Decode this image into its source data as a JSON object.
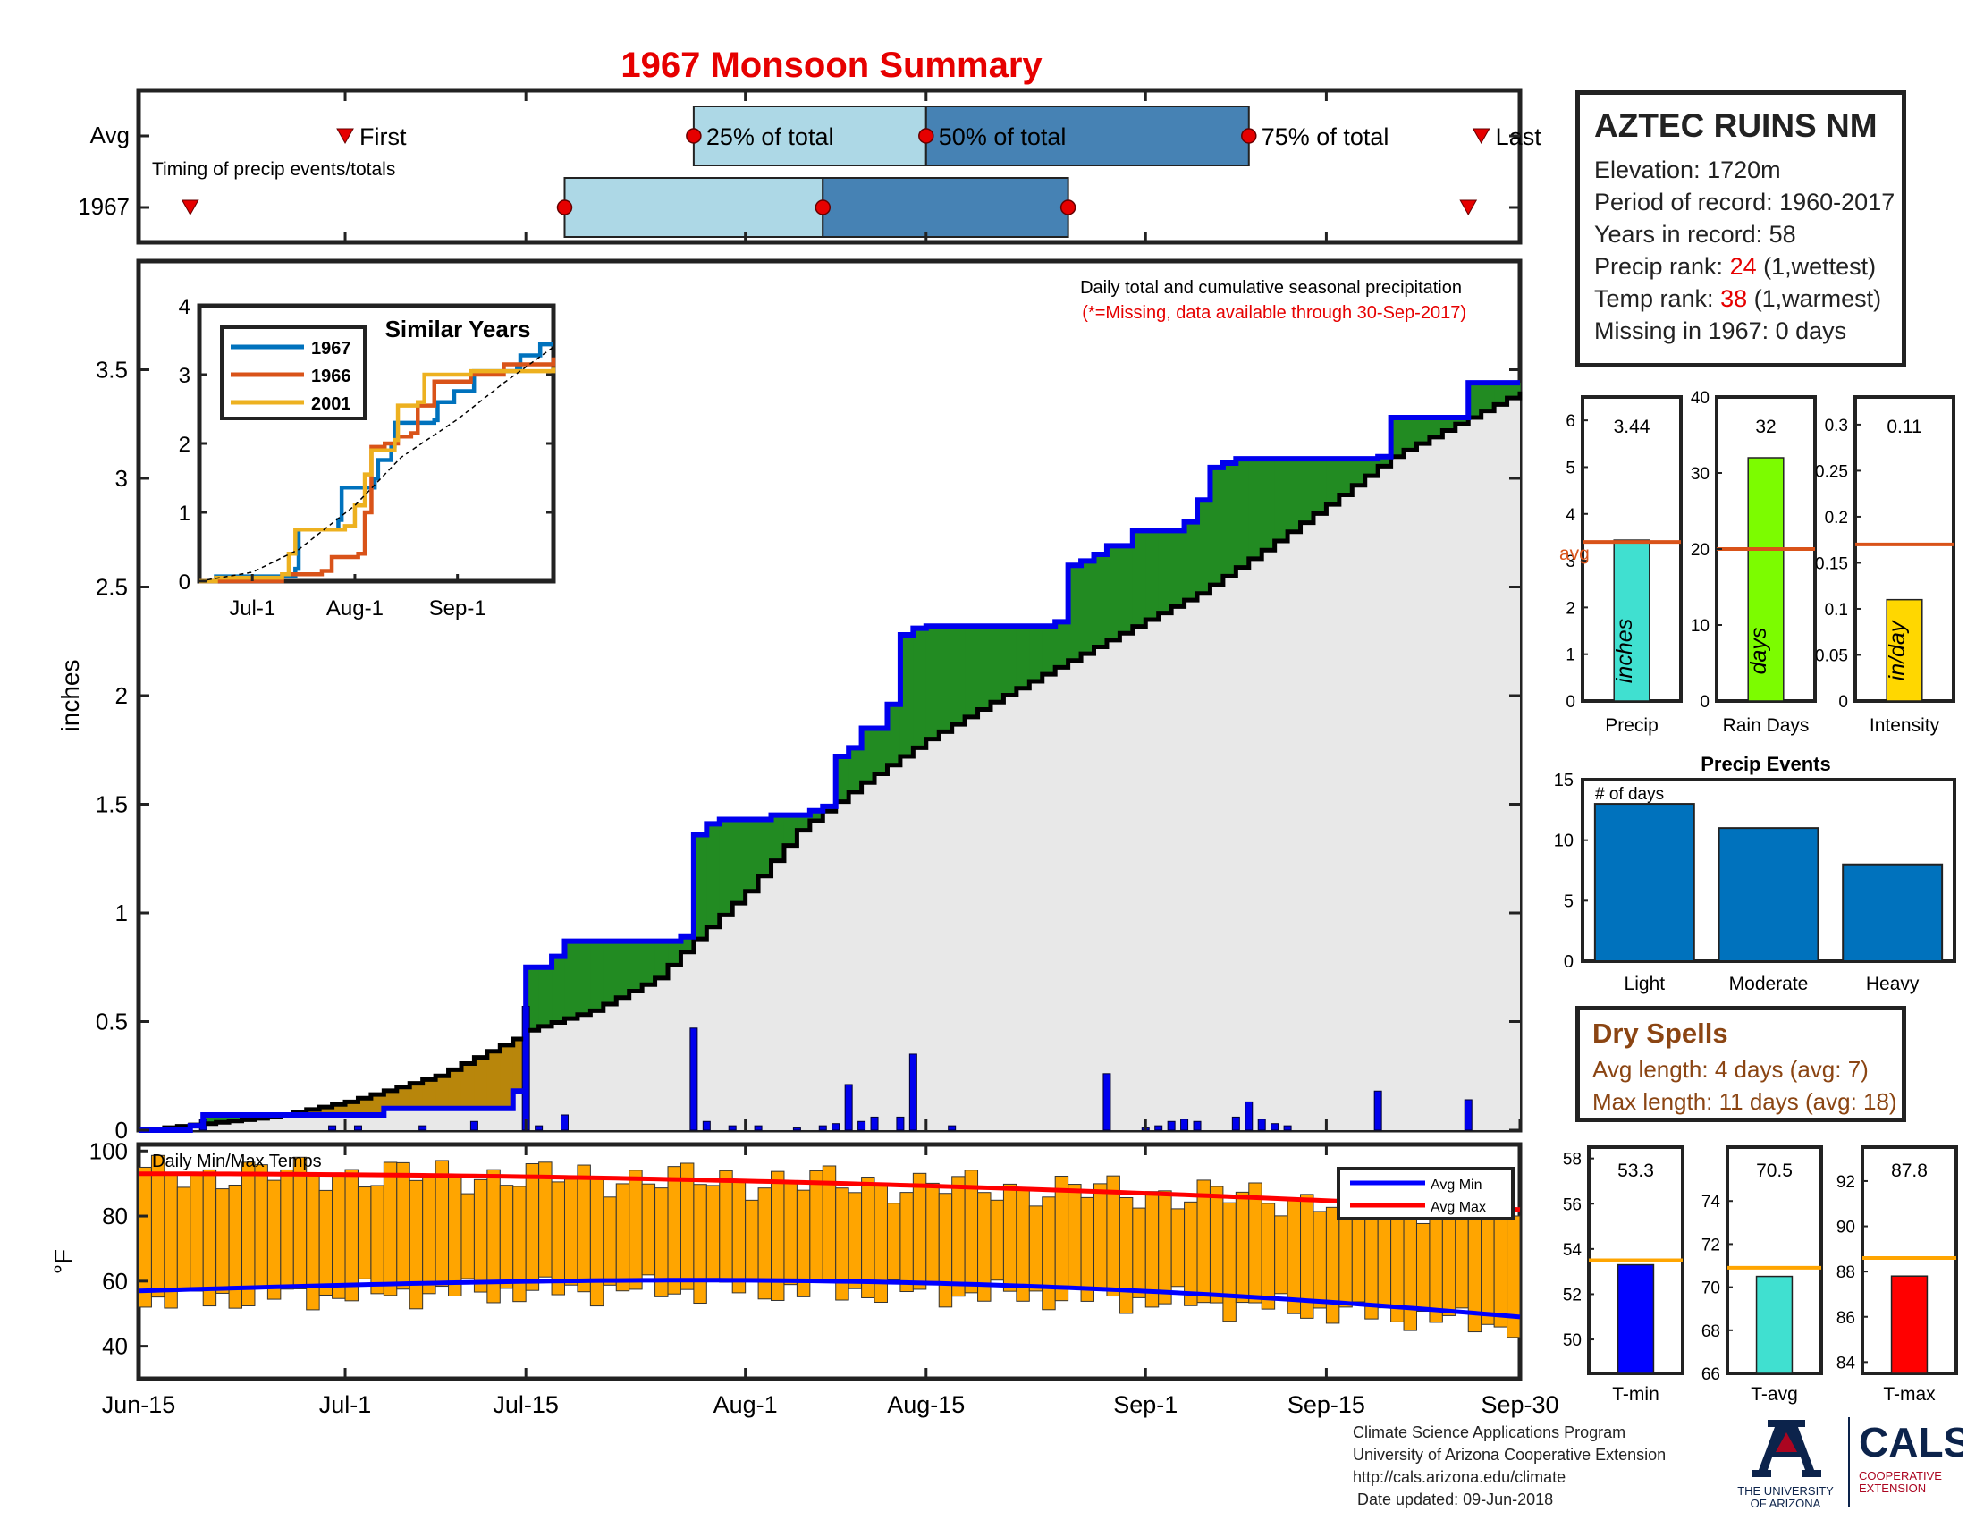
{
  "title": "1967 Monsoon Summary",
  "timing": {
    "row_labels": [
      "Avg",
      "1967"
    ],
    "subtitle": "Timing of precip events/totals",
    "first_label": "First",
    "last_label": "Last",
    "pct_labels": [
      "25% of total",
      "50% of total",
      "75% of total"
    ],
    "axis_start": "2019-06-15",
    "avg": {
      "first": "2019-07-01",
      "p25": "2019-07-28",
      "p50": "2019-08-15",
      "p75": "2019-09-09",
      "last": "2019-09-27"
    },
    "year": {
      "first": "2019-06-19",
      "p25": "2019-07-18",
      "p50": "2019-08-07",
      "p75": "2019-08-26",
      "last": "2019-09-26"
    }
  },
  "station": {
    "name": "AZTEC RUINS NM",
    "elevation": "Elevation: 1720m",
    "period": "Period of record: 1960-2017",
    "years": "Years in record: 58",
    "precip_rank_label": "Precip rank: ",
    "precip_rank_value": "24",
    "precip_rank_note": " (1,wettest)",
    "temp_rank_label": "Temp rank: ",
    "temp_rank_value": "38",
    "temp_rank_note": " (1,warmest)",
    "missing": "Missing in 1967: 0 days"
  },
  "main_text": {
    "note1": "Daily total and cumulative seasonal precipitation",
    "note2": "(*=Missing, data available through 30-Sep-2017)",
    "ylabel": "inches",
    "temp_label": "Daily Min/Max Temps",
    "temp_ylabel": "°F"
  },
  "x_ticks": [
    {
      "label": "Jun-15",
      "date": "2019-06-15"
    },
    {
      "label": "Jul-1",
      "date": "2019-07-01"
    },
    {
      "label": "Jul-15",
      "date": "2019-07-15"
    },
    {
      "label": "Aug-1",
      "date": "2019-08-01"
    },
    {
      "label": "Aug-15",
      "date": "2019-08-15"
    },
    {
      "label": "Sep-1",
      "date": "2019-09-01"
    },
    {
      "label": "Sep-15",
      "date": "2019-09-15"
    },
    {
      "label": "Sep-30",
      "date": "2019-09-30"
    }
  ],
  "inset": {
    "title": "Similar Years",
    "legend": [
      "1967",
      "1966",
      "2001"
    ],
    "x_ticks": [
      "Jul-1",
      "Aug-1",
      "Sep-1"
    ],
    "y_ticks": [
      "0",
      "1",
      "2",
      "3",
      "4"
    ]
  },
  "small_bars": [
    {
      "value_label": "3.44",
      "xlabel": "Precip",
      "unit": "inches",
      "avg_label": "avg",
      "y_ticks": [
        "0",
        "1",
        "2",
        "3",
        "4",
        "5",
        "6"
      ]
    },
    {
      "value_label": "32",
      "xlabel": "Rain Days",
      "unit": "days",
      "y_ticks": [
        "0",
        "10",
        "20",
        "30",
        "40"
      ]
    },
    {
      "value_label": "0.11",
      "xlabel": "Intensity",
      "unit": "in/day",
      "y_ticks": [
        "0",
        "0.05",
        "0.1",
        "0.15",
        "0.2",
        "0.25",
        "0.3"
      ]
    }
  ],
  "events": {
    "title": "Precip Events",
    "note": "# of days",
    "y_ticks": [
      "0",
      "5",
      "10",
      "15"
    ]
  },
  "temp_bars": [
    {
      "value_label": "53.3",
      "xlabel": "T-min",
      "y_ticks": [
        "50",
        "52",
        "54",
        "56",
        "58"
      ]
    },
    {
      "value_label": "70.5",
      "xlabel": "T-avg",
      "y_ticks": [
        "66",
        "68",
        "70",
        "72",
        "74"
      ]
    },
    {
      "value_label": "87.8",
      "xlabel": "T-max",
      "y_ticks": [
        "84",
        "86",
        "88",
        "90",
        "92"
      ]
    }
  ],
  "dry_spells": {
    "title": "Dry Spells",
    "avg": "Avg length: 4 days (avg: 7)",
    "max": "Max length: 11 days (avg: 18)"
  },
  "credits": [
    "Climate Science Applications Program",
    "University of Arizona Cooperative Extension",
    "http://cals.arizona.edu/climate",
    " Date updated: 09-Jun-2018"
  ],
  "logos": {
    "ua_line1": "THE UNIVERSITY",
    "ua_line2": "OF ARIZONA",
    "cals_main": "CALS",
    "cals_line1": "COOPERATIVE",
    "cals_line2": "EXTENSION"
  },
  "colors": {
    "title": "#e60000",
    "year_line": "#0000ee",
    "avg_line": "#000000",
    "above_fill": "#228b22",
    "below_fill": "#b8860b",
    "base_fill": "#e8e8e8",
    "daily_bar": "#0000ee",
    "temp_bar": "#ffa500",
    "avg_min": "#0000ff",
    "avg_max": "#ff0000",
    "box_light": "#add8e6",
    "box_dark": "#4682b4"
  },
  "chart_data": [
    {
      "type": "line",
      "name": "cumulative",
      "x_start": "2019-06-15",
      "x_end": "2019-09-30",
      "ylim": [
        0,
        4
      ],
      "y_ticks": [
        0,
        0.5,
        1,
        1.5,
        2,
        2.5,
        3,
        3.5
      ],
      "series": [
        {
          "name": "1967",
          "points": [
            [
              "2019-06-15",
              0
            ],
            [
              "2019-06-19",
              0.02
            ],
            [
              "2019-06-20",
              0.07
            ],
            [
              "2019-07-04",
              0.1
            ],
            [
              "2019-07-14",
              0.18
            ],
            [
              "2019-07-15",
              0.75
            ],
            [
              "2019-07-17",
              0.8
            ],
            [
              "2019-07-18",
              0.87
            ],
            [
              "2019-07-27",
              0.89
            ],
            [
              "2019-07-28",
              1.36
            ],
            [
              "2019-07-29",
              1.41
            ],
            [
              "2019-07-30",
              1.43
            ],
            [
              "2019-08-03",
              1.45
            ],
            [
              "2019-08-06",
              1.47
            ],
            [
              "2019-08-07",
              1.49
            ],
            [
              "2019-08-08",
              1.72
            ],
            [
              "2019-08-09",
              1.76
            ],
            [
              "2019-08-10",
              1.85
            ],
            [
              "2019-08-12",
              1.96
            ],
            [
              "2019-08-13",
              2.28
            ],
            [
              "2019-08-14",
              2.31
            ],
            [
              "2019-08-15",
              2.32
            ],
            [
              "2019-08-25",
              2.34
            ],
            [
              "2019-08-26",
              2.6
            ],
            [
              "2019-08-27",
              2.62
            ],
            [
              "2019-08-28",
              2.65
            ],
            [
              "2019-08-29",
              2.69
            ],
            [
              "2019-08-31",
              2.76
            ],
            [
              "2019-09-04",
              2.8
            ],
            [
              "2019-09-05",
              2.9
            ],
            [
              "2019-09-06",
              3.05
            ],
            [
              "2019-09-07",
              3.07
            ],
            [
              "2019-09-08",
              3.09
            ],
            [
              "2019-09-19",
              3.1
            ],
            [
              "2019-09-20",
              3.28
            ],
            [
              "2019-09-26",
              3.44
            ],
            [
              "2019-09-30",
              3.44
            ]
          ]
        },
        {
          "name": "Avg",
          "points": [
            [
              "2019-06-15",
              0
            ],
            [
              "2019-06-25",
              0.06
            ],
            [
              "2019-07-01",
              0.13
            ],
            [
              "2019-07-08",
              0.25
            ],
            [
              "2019-07-14",
              0.42
            ],
            [
              "2019-07-15",
              0.46
            ],
            [
              "2019-07-20",
              0.55
            ],
            [
              "2019-07-25",
              0.7
            ],
            [
              "2019-07-28",
              0.88
            ],
            [
              "2019-08-01",
              1.1
            ],
            [
              "2019-08-05",
              1.38
            ],
            [
              "2019-08-10",
              1.6
            ],
            [
              "2019-08-15",
              1.8
            ],
            [
              "2019-08-20",
              1.97
            ],
            [
              "2019-08-25",
              2.13
            ],
            [
              "2019-09-01",
              2.35
            ],
            [
              "2019-09-05",
              2.47
            ],
            [
              "2019-09-10",
              2.67
            ],
            [
              "2019-09-15",
              2.88
            ],
            [
              "2019-09-20",
              3.1
            ],
            [
              "2019-09-25",
              3.25
            ],
            [
              "2019-09-30",
              3.4
            ]
          ]
        }
      ],
      "daily_bars": [
        [
          "2019-06-20",
          0.05
        ],
        [
          "2019-06-30",
          0.02
        ],
        [
          "2019-07-02",
          0.02
        ],
        [
          "2019-07-07",
          0.02
        ],
        [
          "2019-07-11",
          0.04
        ],
        [
          "2019-07-15",
          0.57
        ],
        [
          "2019-07-16",
          0.02
        ],
        [
          "2019-07-18",
          0.07
        ],
        [
          "2019-07-28",
          0.47
        ],
        [
          "2019-07-29",
          0.04
        ],
        [
          "2019-07-31",
          0.02
        ],
        [
          "2019-08-02",
          0.02
        ],
        [
          "2019-08-05",
          0.01
        ],
        [
          "2019-08-07",
          0.02
        ],
        [
          "2019-08-08",
          0.03
        ],
        [
          "2019-08-09",
          0.21
        ],
        [
          "2019-08-10",
          0.04
        ],
        [
          "2019-08-11",
          0.06
        ],
        [
          "2019-08-13",
          0.06
        ],
        [
          "2019-08-14",
          0.35
        ],
        [
          "2019-08-17",
          0.02
        ],
        [
          "2019-08-29",
          0.26
        ],
        [
          "2019-09-01",
          0.01
        ],
        [
          "2019-09-02",
          0.02
        ],
        [
          "2019-09-03",
          0.04
        ],
        [
          "2019-09-04",
          0.05
        ],
        [
          "2019-09-05",
          0.04
        ],
        [
          "2019-09-08",
          0.06
        ],
        [
          "2019-09-09",
          0.13
        ],
        [
          "2019-09-10",
          0.05
        ],
        [
          "2019-09-11",
          0.03
        ],
        [
          "2019-09-12",
          0.02
        ],
        [
          "2019-09-19",
          0.18
        ],
        [
          "2019-09-26",
          0.14
        ]
      ]
    },
    {
      "type": "line",
      "name": "similar_years",
      "title": "Similar Years",
      "ylim": [
        0,
        4
      ],
      "series": [
        {
          "name": "1967",
          "points": [
            [
              "2019-06-15",
              0
            ],
            [
              "2019-06-20",
              0.07
            ],
            [
              "2019-07-14",
              0.18
            ],
            [
              "2019-07-15",
              0.75
            ],
            [
              "2019-07-27",
              0.89
            ],
            [
              "2019-07-28",
              1.36
            ],
            [
              "2019-08-07",
              1.49
            ],
            [
              "2019-08-08",
              1.76
            ],
            [
              "2019-08-12",
              1.96
            ],
            [
              "2019-08-13",
              2.3
            ],
            [
              "2019-08-25",
              2.34
            ],
            [
              "2019-08-26",
              2.6
            ],
            [
              "2019-08-31",
              2.76
            ],
            [
              "2019-09-06",
              3.05
            ],
            [
              "2019-09-19",
              3.1
            ],
            [
              "2019-09-20",
              3.28
            ],
            [
              "2019-09-26",
              3.44
            ],
            [
              "2019-09-30",
              3.44
            ]
          ]
        },
        {
          "name": "1966",
          "points": [
            [
              "2019-06-15",
              0
            ],
            [
              "2019-07-10",
              0.1
            ],
            [
              "2019-07-22",
              0.15
            ],
            [
              "2019-07-25",
              0.35
            ],
            [
              "2019-08-02",
              0.4
            ],
            [
              "2019-08-04",
              1.0
            ],
            [
              "2019-08-06",
              1.95
            ],
            [
              "2019-08-10",
              2.0
            ],
            [
              "2019-08-14",
              2.1
            ],
            [
              "2019-08-18",
              2.15
            ],
            [
              "2019-08-20",
              2.55
            ],
            [
              "2019-08-25",
              2.9
            ],
            [
              "2019-09-05",
              3.0
            ],
            [
              "2019-09-15",
              3.15
            ],
            [
              "2019-09-30",
              3.25
            ]
          ]
        },
        {
          "name": "2001",
          "points": [
            [
              "2019-06-15",
              0
            ],
            [
              "2019-06-20",
              0.05
            ],
            [
              "2019-07-10",
              0.1
            ],
            [
              "2019-07-12",
              0.4
            ],
            [
              "2019-07-14",
              0.75
            ],
            [
              "2019-07-29",
              0.8
            ],
            [
              "2019-08-01",
              1.1
            ],
            [
              "2019-08-04",
              1.55
            ],
            [
              "2019-08-06",
              1.9
            ],
            [
              "2019-08-13",
              2.05
            ],
            [
              "2019-08-14",
              2.55
            ],
            [
              "2019-08-20",
              2.6
            ],
            [
              "2019-08-22",
              3.0
            ],
            [
              "2019-09-05",
              3.05
            ],
            [
              "2019-09-30",
              3.1
            ]
          ]
        },
        {
          "name": "Avg",
          "points": [
            [
              "2019-06-15",
              0
            ],
            [
              "2019-07-01",
              0.13
            ],
            [
              "2019-07-15",
              0.46
            ],
            [
              "2019-08-01",
              1.1
            ],
            [
              "2019-08-15",
              1.8
            ],
            [
              "2019-09-01",
              2.35
            ],
            [
              "2019-09-15",
              2.88
            ],
            [
              "2019-09-30",
              3.4
            ]
          ]
        }
      ],
      "x_ticks": [
        "Jul-1",
        "Aug-1",
        "Sep-1"
      ]
    },
    {
      "type": "bar",
      "name": "temps",
      "title": "Daily Min/Max Temps",
      "ylim": [
        30,
        102
      ],
      "y_ticks": [
        40,
        60,
        80,
        100
      ],
      "legend": [
        "Avg Min",
        "Avg Max"
      ],
      "legend_position": "top-right",
      "min_base": 57,
      "min_amp": 4,
      "max_base": 89,
      "max_amp": 3
    },
    {
      "type": "bar",
      "name": "precip_events",
      "title": "Precip Events",
      "categories": [
        "Light",
        "Moderate",
        "Heavy"
      ],
      "values": [
        13,
        11,
        8
      ],
      "ylim": [
        0,
        15
      ]
    },
    {
      "type": "bar",
      "name": "season_totals",
      "panels": [
        {
          "category": "Precip",
          "value": 3.44,
          "avg": 3.4,
          "ylim": [
            0,
            6.5
          ]
        },
        {
          "category": "Rain Days",
          "value": 32,
          "avg": 20,
          "ylim": [
            0,
            40
          ]
        },
        {
          "category": "Intensity",
          "value": 0.11,
          "avg": 0.17,
          "ylim": [
            0,
            0.33
          ]
        }
      ]
    },
    {
      "type": "bar",
      "name": "season_temps",
      "panels": [
        {
          "category": "T-min",
          "value": 53.3,
          "avg": 53.5,
          "ylim": [
            48.5,
            58.5
          ]
        },
        {
          "category": "T-avg",
          "value": 70.5,
          "avg": 70.9,
          "ylim": [
            66,
            76.5
          ]
        },
        {
          "category": "T-max",
          "value": 87.8,
          "avg": 88.6,
          "ylim": [
            83.5,
            93.5
          ]
        }
      ]
    }
  ]
}
